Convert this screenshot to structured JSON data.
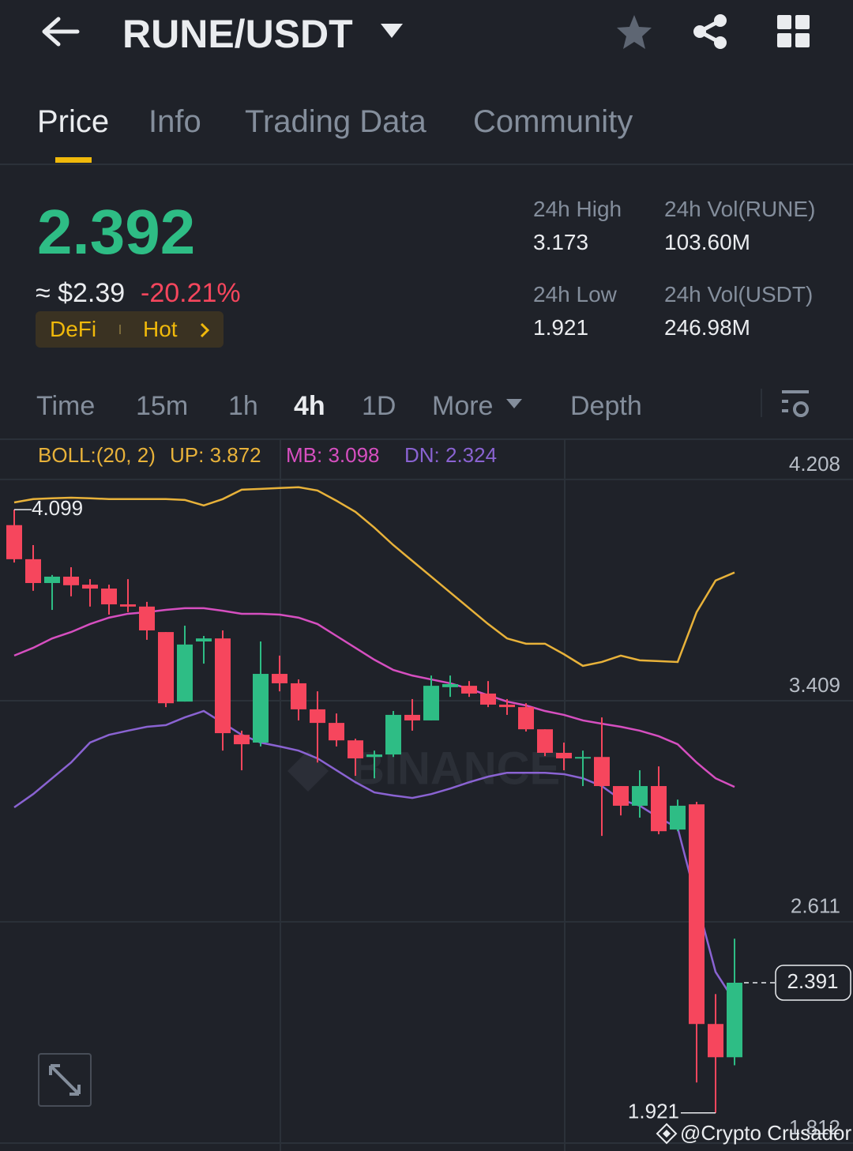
{
  "header": {
    "title": "RUNE/USDT"
  },
  "tabs": [
    "Price",
    "Info",
    "Trading Data",
    "Community"
  ],
  "price": {
    "last": "2.392",
    "fiat": "≈ $2.39",
    "change": "-20.21%",
    "tags": [
      "DeFi",
      "Hot"
    ]
  },
  "stats": [
    {
      "label": "24h High",
      "value": "3.173"
    },
    {
      "label": "24h Vol(RUNE)",
      "value": "103.60M"
    },
    {
      "label": "24h Low",
      "value": "1.921"
    },
    {
      "label": "24h Vol(USDT)",
      "value": "246.98M"
    }
  ],
  "intervals": [
    "Time",
    "15m",
    "1h",
    "4h",
    "1D",
    "More",
    "Depth"
  ],
  "watermarks": [
    "BINANCE",
    "@Crypto Crusador"
  ],
  "chart_data": {
    "type": "candlestick",
    "indicator": "BOLL:(20, 2)",
    "up_color": "#2ebd85",
    "down_color": "#f6465d",
    "ylim": [
      1.812,
      4.356
    ],
    "yticks": [
      4.208,
      3.409,
      2.611,
      1.812
    ],
    "grid": true,
    "open": [
      4.043,
      3.92,
      3.834,
      3.857,
      3.828,
      3.814,
      3.757,
      3.749,
      3.657,
      3.406,
      3.623,
      3.634,
      3.286,
      3.258,
      3.506,
      3.472,
      3.378,
      3.329,
      3.266,
      3.206,
      3.215,
      3.358,
      3.338,
      3.458,
      3.463,
      3.435,
      3.395,
      3.386,
      3.306,
      3.221,
      3.201,
      3.206,
      3.101,
      3.03,
      3.101,
      2.944,
      3.035,
      2.242,
      2.122
    ],
    "high": [
      4.099,
      3.971,
      3.863,
      3.891,
      3.848,
      3.828,
      3.848,
      3.766,
      3.657,
      3.68,
      3.643,
      3.663,
      3.301,
      3.623,
      3.572,
      3.486,
      3.443,
      3.363,
      3.272,
      3.229,
      3.372,
      3.415,
      3.5,
      3.5,
      3.48,
      3.48,
      3.415,
      3.4,
      3.306,
      3.258,
      3.229,
      3.349,
      3.101,
      3.158,
      3.172,
      3.052,
      3.044,
      2.35,
      2.55
    ],
    "low": [
      3.908,
      3.806,
      3.737,
      3.786,
      3.749,
      3.72,
      3.729,
      3.629,
      3.386,
      3.406,
      3.543,
      3.229,
      3.158,
      3.244,
      3.443,
      3.338,
      3.186,
      3.244,
      3.138,
      3.129,
      3.206,
      3.301,
      3.338,
      3.423,
      3.423,
      3.386,
      3.358,
      3.298,
      3.209,
      3.158,
      3.101,
      2.921,
      2.995,
      2.987,
      2.927,
      2.938,
      2.031,
      1.921,
      2.093
    ],
    "close": [
      3.92,
      3.834,
      3.857,
      3.826,
      3.814,
      3.757,
      3.749,
      3.663,
      3.4,
      3.612,
      3.634,
      3.292,
      3.252,
      3.506,
      3.472,
      3.378,
      3.329,
      3.266,
      3.201,
      3.215,
      3.358,
      3.338,
      3.463,
      3.469,
      3.435,
      3.395,
      3.386,
      3.306,
      3.221,
      3.201,
      3.206,
      3.101,
      3.03,
      3.101,
      2.938,
      3.03,
      2.242,
      2.122,
      2.391
    ],
    "series": [
      {
        "name": "UP: 3.872",
        "color": "#e8b23a",
        "values": [
          4.125,
          4.137,
          4.14,
          4.142,
          4.14,
          4.137,
          4.137,
          4.137,
          4.137,
          4.134,
          4.114,
          4.137,
          4.171,
          4.174,
          4.177,
          4.18,
          4.168,
          4.131,
          4.091,
          4.034,
          3.971,
          3.914,
          3.857,
          3.8,
          3.743,
          3.686,
          3.634,
          3.615,
          3.615,
          3.577,
          3.535,
          3.549,
          3.572,
          3.555,
          3.552,
          3.549,
          3.729,
          3.843,
          3.872
        ]
      },
      {
        "name": "MB: 3.098",
        "color": "#d64fc0",
        "values": [
          3.572,
          3.6,
          3.634,
          3.657,
          3.686,
          3.709,
          3.723,
          3.729,
          3.737,
          3.743,
          3.743,
          3.734,
          3.723,
          3.723,
          3.72,
          3.709,
          3.686,
          3.643,
          3.6,
          3.557,
          3.52,
          3.5,
          3.486,
          3.472,
          3.452,
          3.429,
          3.406,
          3.392,
          3.372,
          3.358,
          3.338,
          3.326,
          3.315,
          3.301,
          3.281,
          3.252,
          3.186,
          3.129,
          3.098
        ]
      },
      {
        "name": "DN: 2.324",
        "color": "#8a63d2",
        "values": [
          3.024,
          3.072,
          3.129,
          3.186,
          3.258,
          3.286,
          3.301,
          3.315,
          3.321,
          3.349,
          3.372,
          3.329,
          3.286,
          3.258,
          3.244,
          3.229,
          3.201,
          3.158,
          3.115,
          3.078,
          3.067,
          3.058,
          3.072,
          3.092,
          3.115,
          3.135,
          3.149,
          3.149,
          3.149,
          3.144,
          3.129,
          3.101,
          3.052,
          3.03,
          2.987,
          2.95,
          2.687,
          2.43,
          2.324
        ]
      }
    ]
  }
}
